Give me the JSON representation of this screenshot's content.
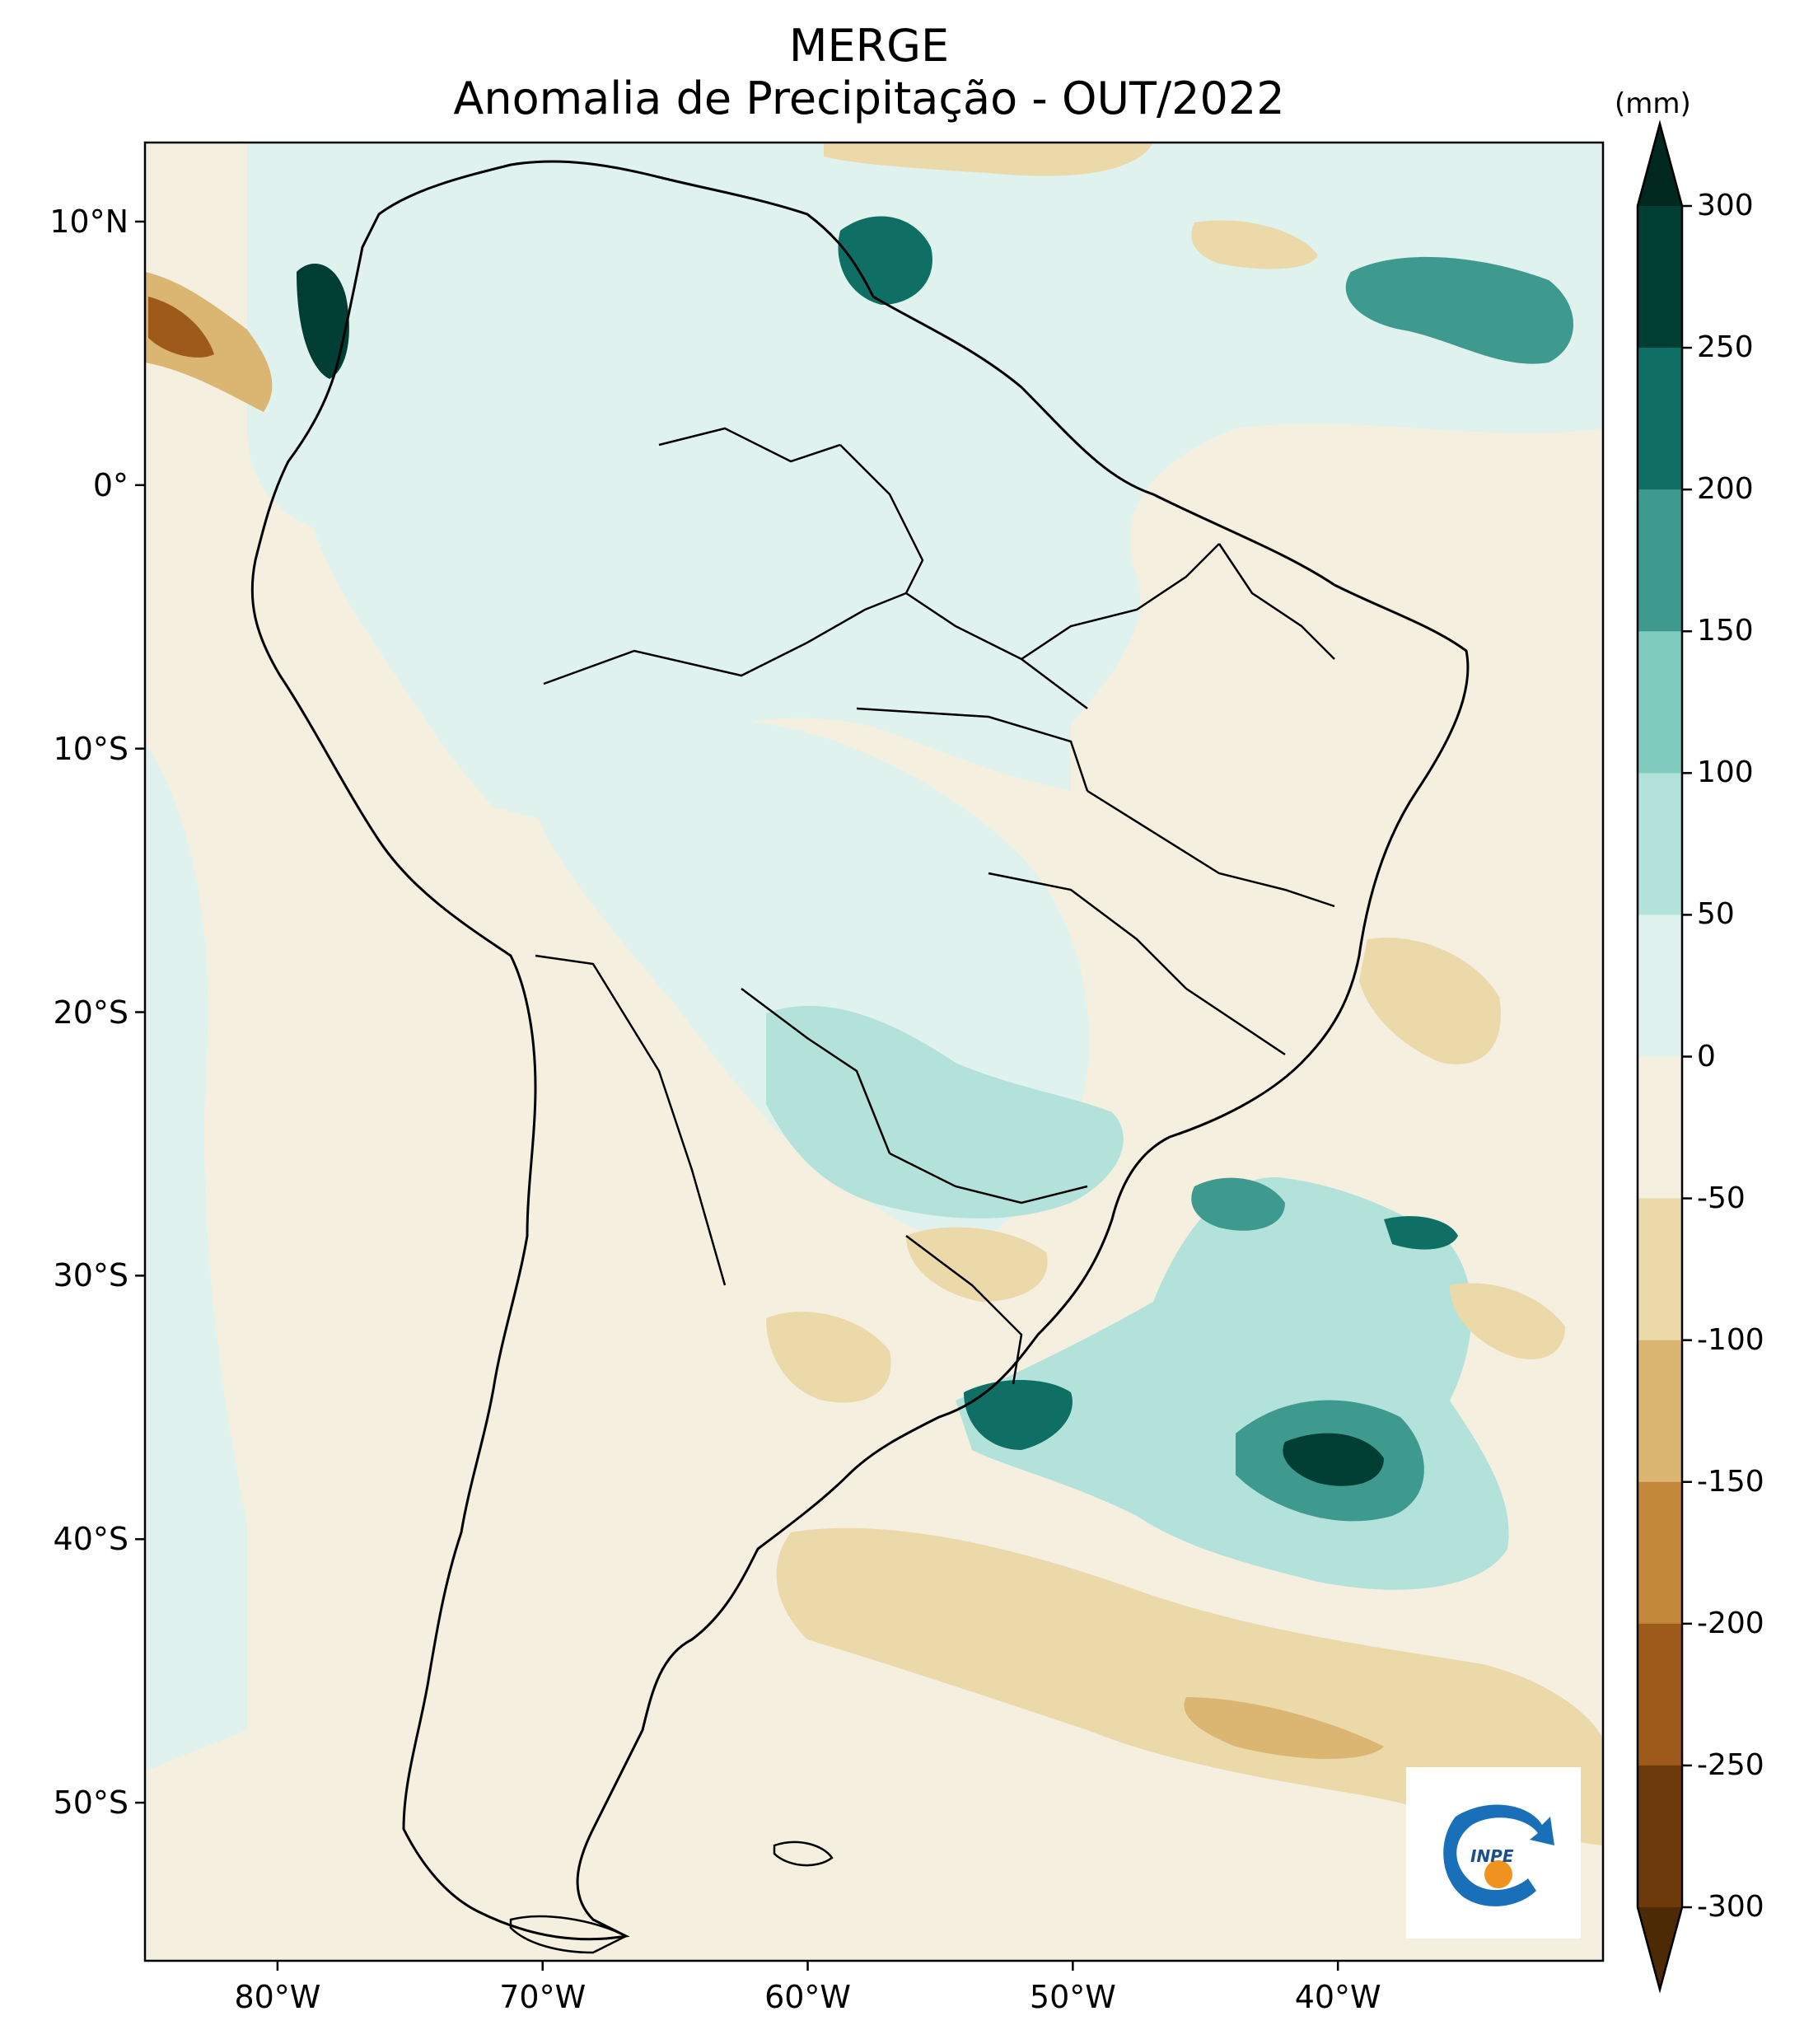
{
  "title": {
    "line1": "MERGE",
    "line2": "Anomalia de Precipitação - OUT/2022"
  },
  "map": {
    "lon_range": [
      -85,
      -30
    ],
    "lat_range": [
      -56,
      13
    ],
    "lat_ticks": [
      {
        "value": 10,
        "label": "10°N"
      },
      {
        "value": 0,
        "label": "0°"
      },
      {
        "value": -10,
        "label": "10°S"
      },
      {
        "value": -20,
        "label": "20°S"
      },
      {
        "value": -30,
        "label": "30°S"
      },
      {
        "value": -40,
        "label": "40°S"
      },
      {
        "value": -50,
        "label": "50°S"
      }
    ],
    "lon_ticks": [
      {
        "value": -80,
        "label": "80°W"
      },
      {
        "value": -70,
        "label": "70°W"
      },
      {
        "value": -60,
        "label": "60°W"
      },
      {
        "value": -50,
        "label": "50°W"
      },
      {
        "value": -40,
        "label": "40°W"
      }
    ],
    "colors": {
      "neutral_negative": "#f5efe0",
      "neutral_positive": "#e0f2ee",
      "border": "#000000"
    }
  },
  "colorbar": {
    "unit": "(mm)",
    "levels": [
      {
        "value": 300,
        "label": "300"
      },
      {
        "value": 250,
        "label": "250"
      },
      {
        "value": 200,
        "label": "200"
      },
      {
        "value": 150,
        "label": "150"
      },
      {
        "value": 100,
        "label": "100"
      },
      {
        "value": 50,
        "label": "50"
      },
      {
        "value": 0,
        "label": "0"
      },
      {
        "value": -50,
        "label": "-50"
      },
      {
        "value": -100,
        "label": "-100"
      },
      {
        "value": -150,
        "label": "-150"
      },
      {
        "value": -200,
        "label": "-200"
      },
      {
        "value": -250,
        "label": "-250"
      },
      {
        "value": -300,
        "label": "-300"
      }
    ],
    "band_colors": [
      "#003d33",
      "#0f6f65",
      "#3e9a8f",
      "#7fcbbd",
      "#b3e2da",
      "#e0f2ee",
      "#f5efe0",
      "#ecd9aa",
      "#dbb673",
      "#c3873a",
      "#9d5a1a",
      "#6c3a0a"
    ],
    "overflow_colors": {
      "max": "#00281f",
      "min": "#4d2a06"
    }
  },
  "logo": {
    "text": "INPE",
    "colors": {
      "ring": "#1a70b8",
      "dot": "#f0921e"
    }
  }
}
